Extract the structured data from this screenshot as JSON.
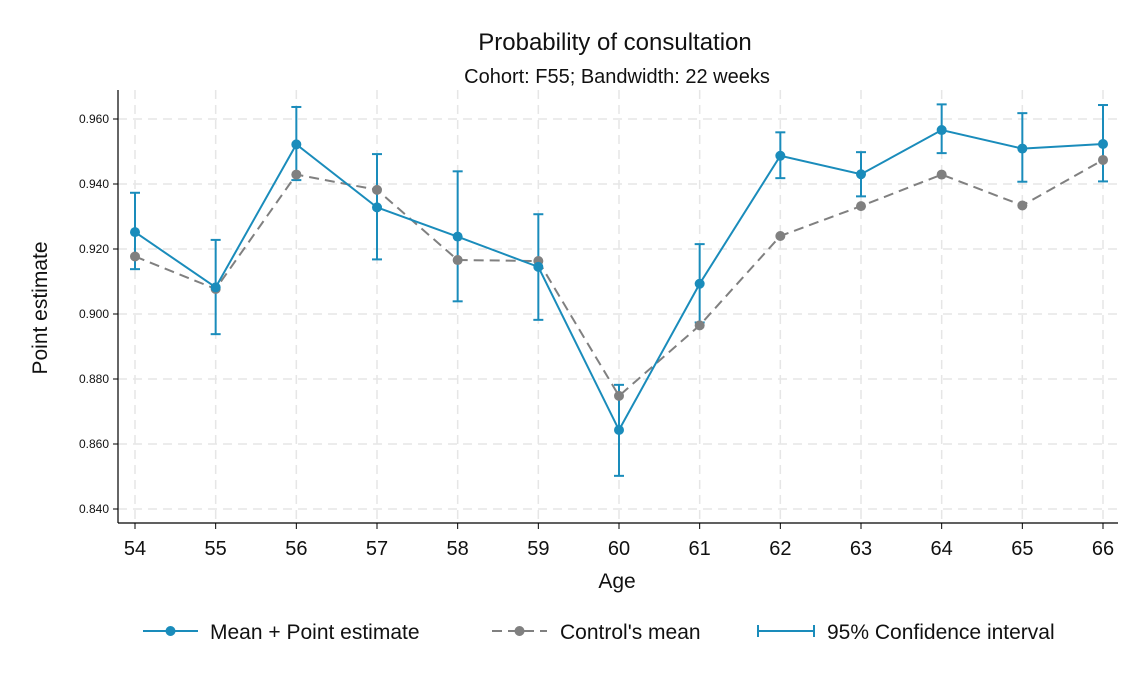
{
  "chart_data": {
    "type": "line",
    "title": "Probability of consultation",
    "subtitle": "Cohort: F55; Bandwidth: 22 weeks",
    "xlabel": "Age",
    "ylabel": "Point estimate",
    "x": [
      54,
      55,
      56,
      57,
      58,
      59,
      60,
      61,
      62,
      63,
      64,
      65,
      66
    ],
    "x_tick_labels": [
      "54",
      "55",
      "56",
      "57",
      "58",
      "59",
      "60",
      "61",
      "62",
      "63",
      "64",
      "65",
      "66"
    ],
    "y_ticks": [
      0.84,
      0.86,
      0.88,
      0.9,
      0.92,
      0.94,
      0.96
    ],
    "y_tick_labels": [
      "0.840",
      "0.860",
      "0.880",
      "0.900",
      "0.920",
      "0.940",
      "0.960"
    ],
    "xlim": [
      54,
      66
    ],
    "ylim": [
      0.8345,
      0.9685
    ],
    "grid": true,
    "legend_position": "bottom",
    "series": [
      {
        "name": "Mean + Point estimate",
        "color": "#1a8cbb",
        "style": "solid-markers",
        "values": [
          0.9252,
          0.9082,
          0.9522,
          0.9328,
          0.9238,
          0.9145,
          0.8643,
          0.9093,
          0.9487,
          0.943,
          0.9566,
          0.9509,
          0.9523
        ]
      },
      {
        "name": "Control's mean",
        "color": "#808080",
        "style": "dashed-markers",
        "values": [
          0.9177,
          0.9077,
          0.9429,
          0.9382,
          0.9166,
          0.9163,
          0.8748,
          0.8965,
          0.924,
          0.9332,
          0.9429,
          0.9334,
          0.9474
        ]
      },
      {
        "name": "95% Confidence interval",
        "color": "#1a8cbb",
        "style": "errorbar",
        "lower": [
          0.9138,
          0.8938,
          0.9412,
          0.9168,
          0.9039,
          0.8982,
          0.8502,
          0.8974,
          0.9418,
          0.9362,
          0.9495,
          0.9407,
          0.9408
        ],
        "upper": [
          0.9373,
          0.9228,
          0.9637,
          0.9492,
          0.9439,
          0.9307,
          0.8782,
          0.9215,
          0.9559,
          0.9498,
          0.9645,
          0.9618,
          0.9643
        ]
      }
    ]
  }
}
